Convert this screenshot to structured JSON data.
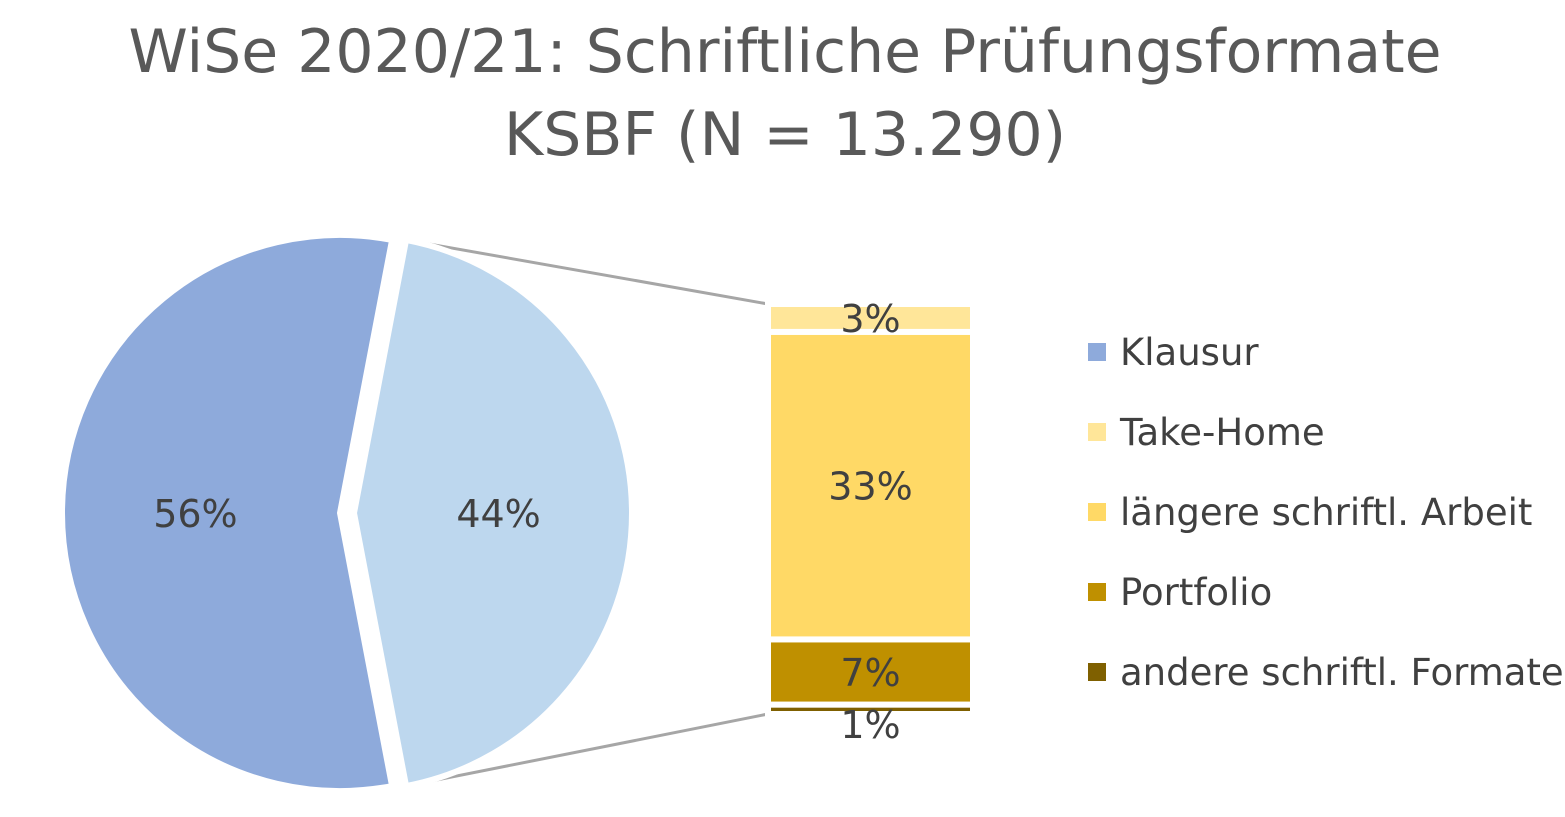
{
  "chart_data": {
    "type": "pie",
    "subtype": "bar-of-pie",
    "title": "WiSe 2020/21: Schriftliche Prüfungsformate",
    "subtitle": "KSBF (N = 13.290)",
    "pie": {
      "slices": [
        {
          "name": "Klausur",
          "value": 56,
          "label": "56%",
          "color": "#8eaadb"
        },
        {
          "name": "",
          "value": 44,
          "label": "44%",
          "color": "#bdd7ee"
        }
      ]
    },
    "bar": {
      "segments": [
        {
          "name": "Take-Home",
          "value": 3,
          "label": "3%",
          "color": "#ffe699"
        },
        {
          "name": "längere schriftl. Arbeit",
          "value": 33,
          "label": "33%",
          "color": "#ffd966"
        },
        {
          "name": "Portfolio",
          "value": 7,
          "label": "7%",
          "color": "#bf9000"
        },
        {
          "name": "andere schriftl. Formate",
          "value": 1,
          "label": "1%",
          "color": "#7f6000"
        }
      ]
    },
    "legend": {
      "position": "right",
      "entries": [
        {
          "label": "Klausur",
          "color": "#8eaadb"
        },
        {
          "label": "Take-Home",
          "color": "#ffe699"
        },
        {
          "label": "längere schriftl. Arbeit",
          "color": "#ffd966"
        },
        {
          "label": "Portfolio",
          "color": "#bf9000"
        },
        {
          "label": "andere schriftl. Formate",
          "color": "#7f6000"
        }
      ]
    },
    "connector_color": "#a6a6a6"
  }
}
